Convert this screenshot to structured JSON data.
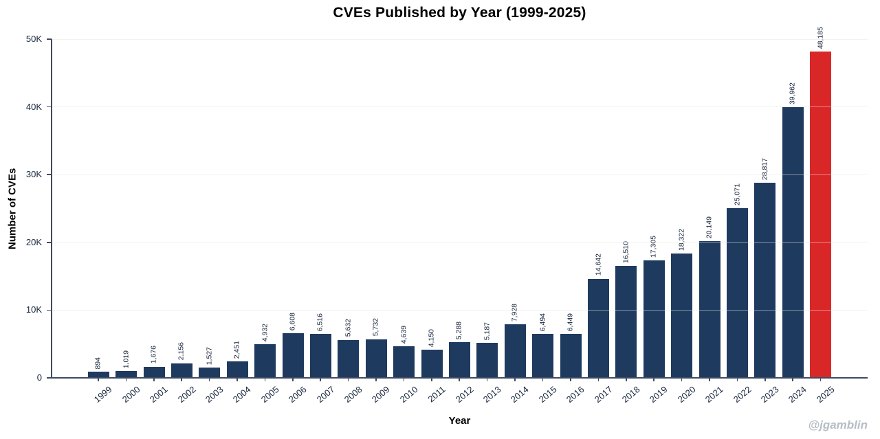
{
  "title": "CVEs Published by Year (1999-2025)",
  "xlabel": "Year",
  "ylabel": "Number of CVEs",
  "watermark": "@jgamblin",
  "colors": {
    "bar": "#1f3a5f",
    "highlight": "#d92728",
    "grid": "#e7e7e7",
    "axis": "#3d4a61",
    "text": "#16243c",
    "watermark": "#b6bdc6"
  },
  "chart_data": {
    "type": "bar",
    "title": "CVEs Published by Year (1999-2025)",
    "xlabel": "Year",
    "ylabel": "Number of CVEs",
    "grid": true,
    "ylim": [
      0,
      50000
    ],
    "highlight_category": "2025",
    "categories": [
      "1999",
      "2000",
      "2001",
      "2002",
      "2003",
      "2004",
      "2005",
      "2006",
      "2007",
      "2008",
      "2009",
      "2010",
      "2011",
      "2012",
      "2013",
      "2014",
      "2015",
      "2016",
      "2017",
      "2018",
      "2019",
      "2020",
      "2021",
      "2022",
      "2023",
      "2024",
      "2025"
    ],
    "values": [
      894,
      1019,
      1676,
      2156,
      1527,
      2451,
      4932,
      6608,
      6516,
      5632,
      5732,
      4639,
      4150,
      5288,
      5187,
      7928,
      6494,
      6449,
      14642,
      16510,
      17305,
      18322,
      20149,
      25071,
      28817,
      39962,
      48185
    ],
    "value_labels": [
      "894",
      "1,019",
      "1,676",
      "2,156",
      "1,527",
      "2,451",
      "4,932",
      "6,608",
      "6,516",
      "5,632",
      "5,732",
      "4,639",
      "4,150",
      "5,288",
      "5,187",
      "7,928",
      "6,494",
      "6,449",
      "14,642",
      "16,510",
      "17,305",
      "18,322",
      "20,149",
      "25,071",
      "28,817",
      "39,962",
      "48,185"
    ],
    "yticks": [
      {
        "value": 0,
        "label": "0"
      },
      {
        "value": 10000,
        "label": "10K"
      },
      {
        "value": 20000,
        "label": "20K"
      },
      {
        "value": 30000,
        "label": "30K"
      },
      {
        "value": 40000,
        "label": "40K"
      },
      {
        "value": 50000,
        "label": "50K"
      }
    ]
  }
}
